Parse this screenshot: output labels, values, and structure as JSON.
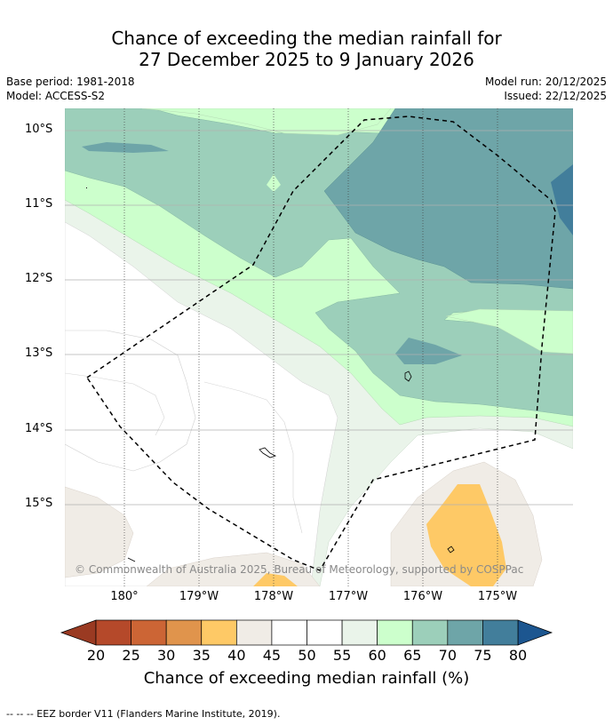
{
  "title": {
    "line1": "Chance of exceeding the median rainfall for",
    "line2": "27 December 2025 to 9 January 2026"
  },
  "meta_left": {
    "base_period": "Base period: 1981-2018",
    "model": "Model: ACCESS-S2"
  },
  "meta_right": {
    "model_run": "Model run: 20/12/2025",
    "issued": "Issued: 22/12/2025"
  },
  "map": {
    "lat_labels": [
      "10°S",
      "11°S",
      "12°S",
      "13°S",
      "14°S",
      "15°S"
    ],
    "lon_labels": [
      "180°",
      "179°W",
      "178°W",
      "177°W",
      "176°W",
      "175°W"
    ],
    "copyright": "© Commonwealth of Australia 2025, Bureau of Meteorology, supported by COSPPac"
  },
  "colorbar": {
    "ticks": [
      "20",
      "25",
      "30",
      "35",
      "40",
      "45",
      "50",
      "55",
      "60",
      "65",
      "70",
      "75",
      "80"
    ],
    "colors": [
      "#b5492a",
      "#cc6535",
      "#e0944c",
      "#fec966",
      "#f0ece6",
      "#ffffff",
      "#ffffff",
      "#eaf4ea",
      "#ccffcc",
      "#9ccfba",
      "#6ea5a8",
      "#427e9b"
    ],
    "under_color": "#9a3a22",
    "over_color": "#1c5690",
    "label": "Chance of exceeding median rainfall (%)"
  },
  "footnote": "--  --  -- EEZ border V11 (Flanders Marine Institute, 2019)."
}
